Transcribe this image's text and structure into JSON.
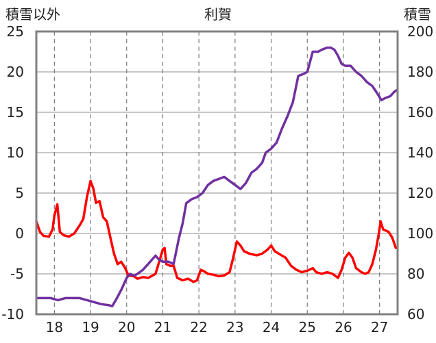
{
  "chart_data": {
    "type": "line",
    "title": "利賀",
    "left_axis_label": "積雪以外",
    "right_axis_label": "積雪",
    "left_ylim": [
      -10,
      25
    ],
    "left_ticks": [
      "25",
      "20",
      "15",
      "10",
      "5",
      "0",
      "-5",
      "-10"
    ],
    "right_ylim": [
      60,
      200
    ],
    "right_ticks": [
      "200",
      "180",
      "160",
      "140",
      "120",
      "100",
      "80",
      "60"
    ],
    "x_ticks": [
      "18",
      "19",
      "20",
      "21",
      "22",
      "23",
      "24",
      "25",
      "26",
      "27"
    ],
    "xlim": [
      17.5,
      27.5
    ],
    "grid": {
      "vertical": "dashed",
      "horizontal": "solid"
    },
    "series": [
      {
        "axis": "left",
        "color": "#ff0000",
        "points": [
          [
            17.5,
            1.5
          ],
          [
            17.6,
            0.2
          ],
          [
            17.7,
            -0.3
          ],
          [
            17.85,
            -0.4
          ],
          [
            17.95,
            0.5
          ],
          [
            18.0,
            2.2
          ],
          [
            18.08,
            3.6
          ],
          [
            18.15,
            0.2
          ],
          [
            18.25,
            -0.2
          ],
          [
            18.4,
            -0.4
          ],
          [
            18.55,
            0.0
          ],
          [
            18.7,
            1.0
          ],
          [
            18.8,
            1.8
          ],
          [
            18.9,
            4.5
          ],
          [
            19.0,
            6.5
          ],
          [
            19.08,
            5.5
          ],
          [
            19.15,
            3.8
          ],
          [
            19.25,
            4.0
          ],
          [
            19.35,
            2.0
          ],
          [
            19.45,
            1.5
          ],
          [
            19.55,
            -0.5
          ],
          [
            19.65,
            -2.5
          ],
          [
            19.75,
            -3.8
          ],
          [
            19.85,
            -3.5
          ],
          [
            19.95,
            -4.2
          ],
          [
            20.05,
            -5.2
          ],
          [
            20.2,
            -5.3
          ],
          [
            20.3,
            -5.6
          ],
          [
            20.45,
            -5.4
          ],
          [
            20.6,
            -5.5
          ],
          [
            20.8,
            -5.0
          ],
          [
            20.9,
            -3.5
          ],
          [
            21.0,
            -2.0
          ],
          [
            21.05,
            -1.8
          ],
          [
            21.1,
            -3.8
          ],
          [
            21.2,
            -4.0
          ],
          [
            21.3,
            -4.0
          ],
          [
            21.4,
            -5.5
          ],
          [
            21.55,
            -5.8
          ],
          [
            21.7,
            -5.6
          ],
          [
            21.85,
            -6.0
          ],
          [
            21.95,
            -5.8
          ],
          [
            22.05,
            -4.5
          ],
          [
            22.15,
            -4.7
          ],
          [
            22.25,
            -5.0
          ],
          [
            22.4,
            -5.1
          ],
          [
            22.55,
            -5.3
          ],
          [
            22.7,
            -5.2
          ],
          [
            22.85,
            -4.8
          ],
          [
            22.95,
            -3.0
          ],
          [
            23.05,
            -1.0
          ],
          [
            23.15,
            -1.5
          ],
          [
            23.25,
            -2.2
          ],
          [
            23.4,
            -2.5
          ],
          [
            23.6,
            -2.7
          ],
          [
            23.75,
            -2.5
          ],
          [
            23.9,
            -2.0
          ],
          [
            24.0,
            -1.5
          ],
          [
            24.1,
            -2.2
          ],
          [
            24.25,
            -2.6
          ],
          [
            24.4,
            -3.0
          ],
          [
            24.55,
            -4.0
          ],
          [
            24.7,
            -4.5
          ],
          [
            24.85,
            -4.8
          ],
          [
            25.0,
            -4.6
          ],
          [
            25.15,
            -4.3
          ],
          [
            25.25,
            -4.8
          ],
          [
            25.4,
            -5.0
          ],
          [
            25.55,
            -4.8
          ],
          [
            25.7,
            -5.0
          ],
          [
            25.85,
            -5.5
          ],
          [
            25.95,
            -4.5
          ],
          [
            26.05,
            -3.0
          ],
          [
            26.15,
            -2.4
          ],
          [
            26.25,
            -3.0
          ],
          [
            26.35,
            -4.3
          ],
          [
            26.5,
            -4.8
          ],
          [
            26.6,
            -5.0
          ],
          [
            26.7,
            -4.8
          ],
          [
            26.8,
            -3.8
          ],
          [
            26.9,
            -2.0
          ],
          [
            26.98,
            0.0
          ],
          [
            27.03,
            1.5
          ],
          [
            27.1,
            0.5
          ],
          [
            27.25,
            0.2
          ],
          [
            27.35,
            -0.5
          ],
          [
            27.45,
            -1.8
          ]
        ]
      },
      {
        "axis": "right",
        "color": "#7030a0",
        "points": [
          [
            17.5,
            68
          ],
          [
            17.7,
            68
          ],
          [
            17.9,
            68
          ],
          [
            18.1,
            67
          ],
          [
            18.3,
            68
          ],
          [
            18.5,
            68
          ],
          [
            18.7,
            68
          ],
          [
            18.9,
            67
          ],
          [
            19.1,
            66
          ],
          [
            19.3,
            65
          ],
          [
            19.5,
            64.5
          ],
          [
            19.6,
            64
          ],
          [
            19.7,
            67
          ],
          [
            19.85,
            72
          ],
          [
            20.0,
            78
          ],
          [
            20.1,
            80
          ],
          [
            20.2,
            79
          ],
          [
            20.3,
            80
          ],
          [
            20.45,
            82
          ],
          [
            20.6,
            85
          ],
          [
            20.7,
            87
          ],
          [
            20.8,
            89
          ],
          [
            20.9,
            87
          ],
          [
            21.0,
            86
          ],
          [
            21.15,
            86
          ],
          [
            21.3,
            85
          ],
          [
            21.45,
            98
          ],
          [
            21.55,
            105
          ],
          [
            21.65,
            115
          ],
          [
            21.8,
            117
          ],
          [
            21.95,
            118
          ],
          [
            22.1,
            120
          ],
          [
            22.25,
            124
          ],
          [
            22.4,
            126
          ],
          [
            22.55,
            127
          ],
          [
            22.7,
            128
          ],
          [
            22.85,
            126
          ],
          [
            23.0,
            124
          ],
          [
            23.15,
            122
          ],
          [
            23.3,
            125
          ],
          [
            23.45,
            130
          ],
          [
            23.6,
            132
          ],
          [
            23.75,
            135
          ],
          [
            23.85,
            140
          ],
          [
            24.0,
            142
          ],
          [
            24.15,
            145
          ],
          [
            24.3,
            152
          ],
          [
            24.45,
            158
          ],
          [
            24.6,
            165
          ],
          [
            24.75,
            178
          ],
          [
            24.9,
            179
          ],
          [
            25.0,
            180
          ],
          [
            25.15,
            190
          ],
          [
            25.3,
            190
          ],
          [
            25.4,
            191
          ],
          [
            25.55,
            192
          ],
          [
            25.65,
            192
          ],
          [
            25.75,
            191
          ],
          [
            25.85,
            188
          ],
          [
            25.95,
            184
          ],
          [
            26.05,
            183
          ],
          [
            26.2,
            183
          ],
          [
            26.35,
            180
          ],
          [
            26.5,
            178
          ],
          [
            26.65,
            175
          ],
          [
            26.8,
            173
          ],
          [
            26.95,
            169
          ],
          [
            27.05,
            166
          ],
          [
            27.15,
            167
          ],
          [
            27.3,
            168
          ],
          [
            27.4,
            170
          ],
          [
            27.48,
            171
          ]
        ]
      }
    ]
  }
}
